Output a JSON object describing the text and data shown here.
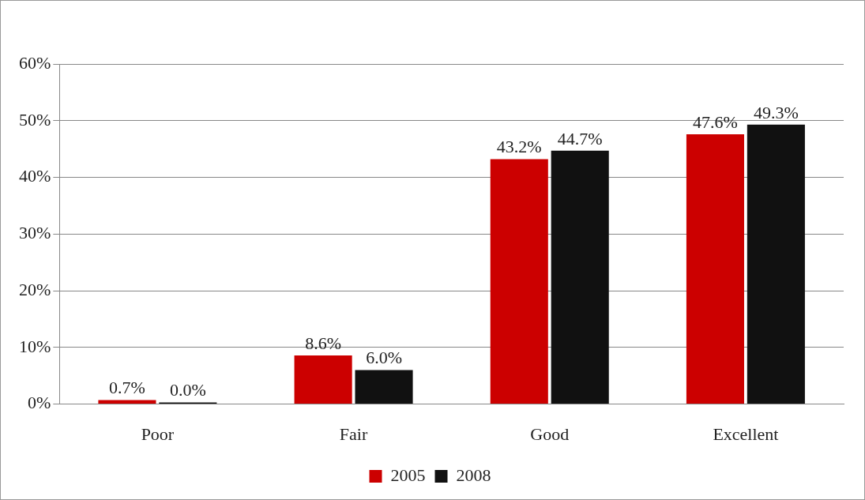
{
  "chart_data": {
    "type": "bar",
    "categories": [
      "Poor",
      "Fair",
      "Good",
      "Excellent"
    ],
    "series": [
      {
        "name": "2005",
        "color": "#cc0000",
        "values": [
          0.7,
          8.6,
          43.2,
          47.6
        ],
        "value_labels": [
          "0.7%",
          "8.6%",
          "43.2%",
          "47.6%"
        ]
      },
      {
        "name": "2008",
        "color": "#111111",
        "values": [
          0.0,
          6.0,
          44.7,
          49.3
        ],
        "value_labels": [
          "0.0%",
          "6.0%",
          "44.7%",
          "49.3%"
        ]
      }
    ],
    "ylim": [
      0,
      60
    ],
    "yticks": [
      {
        "value": 0,
        "label": "0%"
      },
      {
        "value": 10,
        "label": "10%"
      },
      {
        "value": 20,
        "label": "20%"
      },
      {
        "value": 30,
        "label": "30%"
      },
      {
        "value": 40,
        "label": "40%"
      },
      {
        "value": 50,
        "label": "50%"
      },
      {
        "value": 60,
        "label": "60%"
      }
    ],
    "grid": "y",
    "legend": "bottom"
  }
}
